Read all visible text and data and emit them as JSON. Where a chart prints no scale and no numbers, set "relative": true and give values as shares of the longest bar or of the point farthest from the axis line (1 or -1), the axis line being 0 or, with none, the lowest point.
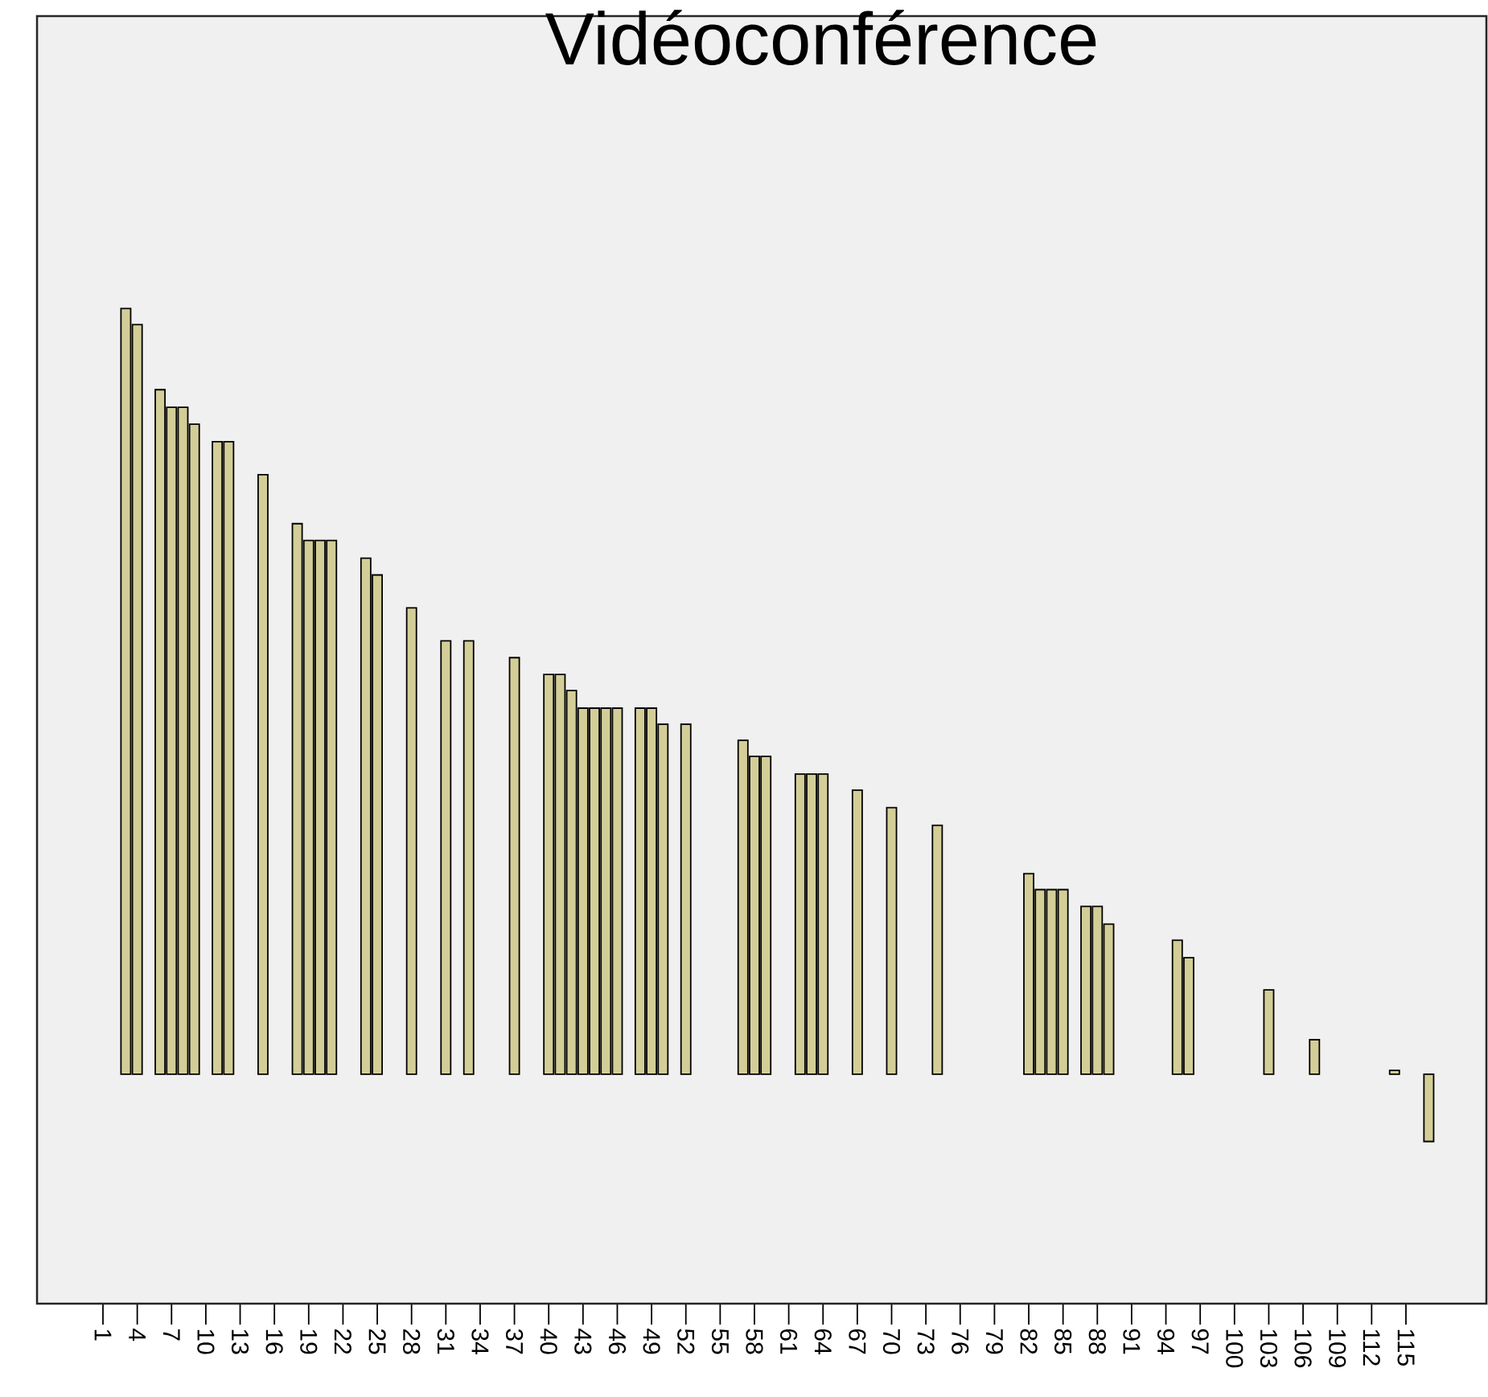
{
  "chart_data": {
    "type": "bar",
    "title": "Vidéoconférence",
    "relative": true,
    "color": "#d3ce97",
    "categories": [
      "1",
      null,
      null,
      "4",
      null,
      null,
      "7",
      null,
      null,
      "10",
      null,
      null,
      "13",
      null,
      null,
      "16",
      null,
      null,
      "19",
      null,
      null,
      "22",
      null,
      null,
      "25",
      null,
      null,
      "28",
      null,
      null,
      "31",
      null,
      null,
      "34",
      null,
      null,
      "37",
      null,
      null,
      "40",
      null,
      null,
      "43",
      null,
      null,
      "46",
      null,
      null,
      "49",
      null,
      null,
      "52",
      null,
      null,
      "55",
      null,
      null,
      "58",
      null,
      null,
      "61",
      null,
      null,
      "64",
      null,
      null,
      "67",
      null,
      null,
      "70",
      null,
      null,
      "73",
      null,
      null,
      "76",
      null,
      null,
      "79",
      null,
      null,
      "82",
      null,
      null,
      "85",
      null,
      null,
      "88",
      null,
      null,
      "91",
      null,
      null,
      "94",
      null,
      null,
      "97",
      null,
      null,
      "100",
      null,
      null,
      "103",
      null,
      null,
      "106",
      null,
      null,
      "109",
      null,
      null,
      "112",
      null,
      null,
      "115",
      null,
      null
    ],
    "values": [
      null,
      null,
      1.0,
      0.979,
      null,
      0.894,
      0.871,
      0.871,
      0.849,
      null,
      0.826,
      0.826,
      null,
      null,
      0.783,
      null,
      null,
      0.719,
      0.697,
      0.697,
      0.697,
      null,
      null,
      0.674,
      0.652,
      null,
      null,
      0.609,
      null,
      null,
      0.566,
      null,
      0.566,
      null,
      null,
      null,
      0.544,
      null,
      null,
      0.522,
      0.522,
      0.501,
      0.478,
      0.478,
      0.478,
      0.478,
      null,
      0.478,
      0.478,
      0.457,
      null,
      0.457,
      null,
      null,
      null,
      null,
      0.436,
      0.415,
      0.415,
      null,
      null,
      0.392,
      0.392,
      0.392,
      null,
      null,
      0.371,
      null,
      null,
      0.348,
      null,
      null,
      null,
      0.325,
      null,
      null,
      null,
      null,
      null,
      null,
      null,
      0.262,
      0.241,
      0.241,
      0.241,
      null,
      0.219,
      0.219,
      0.196,
      null,
      null,
      null,
      null,
      null,
      0.175,
      0.152,
      null,
      null,
      null,
      null,
      null,
      null,
      0.11,
      null,
      null,
      null,
      0.045,
      null,
      null,
      null,
      null,
      null,
      null,
      0.005,
      null,
      null,
      -0.088
    ]
  }
}
